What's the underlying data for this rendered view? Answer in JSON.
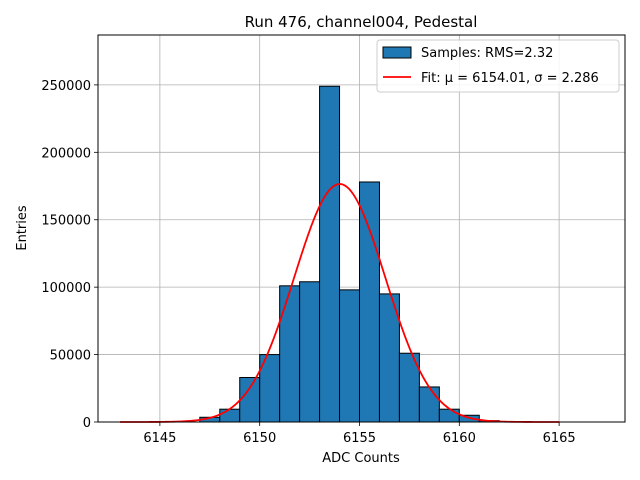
{
  "chart_data": {
    "type": "bar",
    "title": "Run 476, channel004, Pedestal",
    "xlabel": "ADC Counts",
    "ylabel": "Entries",
    "xlim": [
      6141.9,
      6168.3
    ],
    "ylim": [
      0,
      287000
    ],
    "xticks": [
      6145,
      6150,
      6155,
      6160,
      6165
    ],
    "yticks": [
      0,
      50000,
      100000,
      150000,
      200000,
      250000
    ],
    "grid": true,
    "legend_position": "top-right",
    "bar_color": "#1f77b4",
    "fit_color": "#ff0000",
    "bins": [
      {
        "x0": 6147.0,
        "x1": 6148.0,
        "count": 3500
      },
      {
        "x0": 6148.0,
        "x1": 6149.0,
        "count": 9500
      },
      {
        "x0": 6149.0,
        "x1": 6150.0,
        "count": 33000
      },
      {
        "x0": 6150.0,
        "x1": 6151.0,
        "count": 50000
      },
      {
        "x0": 6151.0,
        "x1": 6152.0,
        "count": 101000
      },
      {
        "x0": 6152.0,
        "x1": 6153.0,
        "count": 104000
      },
      {
        "x0": 6153.0,
        "x1": 6154.0,
        "count": 249000
      },
      {
        "x0": 6154.0,
        "x1": 6155.0,
        "count": 98000
      },
      {
        "x0": 6155.0,
        "x1": 6156.0,
        "count": 178000
      },
      {
        "x0": 6156.0,
        "x1": 6157.0,
        "count": 95000
      },
      {
        "x0": 6157.0,
        "x1": 6158.0,
        "count": 51000
      },
      {
        "x0": 6158.0,
        "x1": 6159.0,
        "count": 26000
      },
      {
        "x0": 6159.0,
        "x1": 6160.0,
        "count": 9500
      },
      {
        "x0": 6160.0,
        "x1": 6161.0,
        "count": 5000
      },
      {
        "x0": 6161.0,
        "x1": 6162.0,
        "count": 1000
      }
    ],
    "fit": {
      "mu": 6154.01,
      "sigma": 2.286,
      "amplitude": 176500,
      "x_range": [
        6143.0,
        6165.0
      ]
    },
    "legend": [
      {
        "label": "Samples: RMS=2.32",
        "kind": "patch"
      },
      {
        "label": "Fit: μ = 6154.01, σ = 2.286",
        "kind": "line"
      }
    ]
  }
}
